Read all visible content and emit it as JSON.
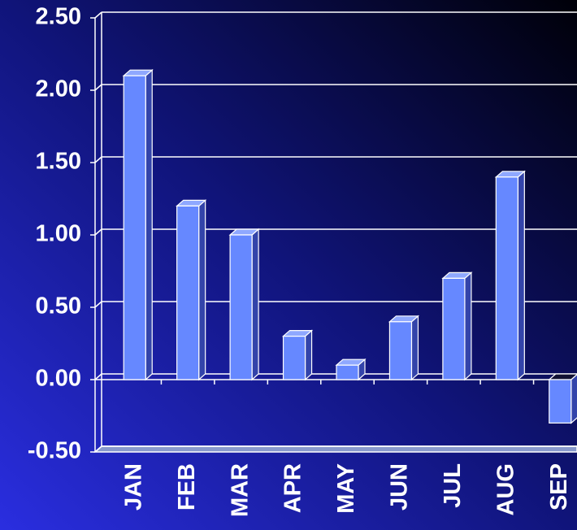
{
  "chart_data": {
    "type": "bar",
    "categories": [
      "JAN",
      "FEB",
      "MAR",
      "APR",
      "MAY",
      "JUN",
      "JUL",
      "AUG",
      "SEP"
    ],
    "values": [
      2.1,
      1.2,
      1.0,
      0.3,
      0.1,
      0.4,
      0.7,
      1.4,
      -0.3
    ],
    "color": "#6688ff",
    "ylim": [
      -0.5,
      2.5
    ],
    "yticks": [
      {
        "value": -0.5,
        "label": "-0.50"
      },
      {
        "value": 0,
        "label": "0.00"
      },
      {
        "value": 0.5,
        "label": "0.50"
      },
      {
        "value": 1,
        "label": "1.00"
      },
      {
        "value": 1.5,
        "label": "1.50"
      },
      {
        "value": 2,
        "label": "2.00"
      },
      {
        "value": 2.5,
        "label": "2.50"
      }
    ],
    "grid": true
  }
}
